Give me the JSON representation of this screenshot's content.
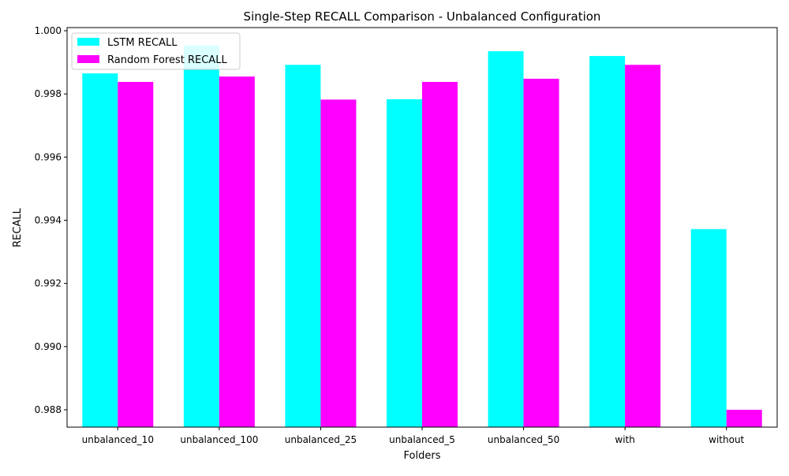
{
  "chart_data": {
    "type": "bar",
    "title": "Single-Step RECALL Comparison - Unbalanced Configuration",
    "xlabel": "Folders",
    "ylabel": "RECALL",
    "categories": [
      "unbalanced_10",
      "unbalanced_100",
      "unbalanced_25",
      "unbalanced_5",
      "unbalanced_50",
      "with",
      "without"
    ],
    "series": [
      {
        "name": "LSTM RECALL",
        "color": "#00ffff",
        "values": [
          0.99865,
          0.99953,
          0.99892,
          0.99783,
          0.99935,
          0.9992,
          0.99372
        ]
      },
      {
        "name": "Random Forest RECALL",
        "color": "#ff00ff",
        "values": [
          0.99838,
          0.99855,
          0.99782,
          0.99838,
          0.99848,
          0.99892,
          0.988
        ]
      }
    ],
    "ylim": [
      0.98745,
      1.0001
    ],
    "yticks": [
      0.988,
      0.99,
      0.992,
      0.994,
      0.996,
      0.998,
      1.0
    ],
    "ytick_labels": [
      "0.988",
      "0.990",
      "0.992",
      "0.994",
      "0.996",
      "0.998",
      "1.000"
    ],
    "legend_position": "top-left",
    "grid": false
  }
}
